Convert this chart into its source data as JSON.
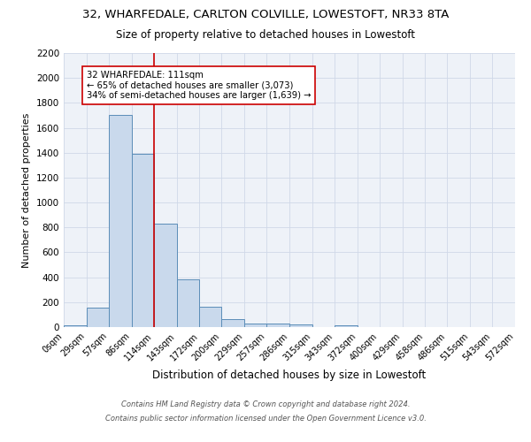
{
  "title_line1": "32, WHARFEDALE, CARLTON COLVILLE, LOWESTOFT, NR33 8TA",
  "title_line2": "Size of property relative to detached houses in Lowestoft",
  "xlabel": "Distribution of detached houses by size in Lowestoft",
  "ylabel": "Number of detached properties",
  "bin_labels": [
    "0sqm",
    "29sqm",
    "57sqm",
    "86sqm",
    "114sqm",
    "143sqm",
    "172sqm",
    "200sqm",
    "229sqm",
    "257sqm",
    "286sqm",
    "315sqm",
    "343sqm",
    "372sqm",
    "400sqm",
    "429sqm",
    "458sqm",
    "486sqm",
    "515sqm",
    "543sqm",
    "572sqm"
  ],
  "bin_edges": [
    0,
    29,
    57,
    86,
    114,
    143,
    172,
    200,
    229,
    257,
    286,
    315,
    343,
    372,
    400,
    429,
    458,
    486,
    515,
    543,
    572
  ],
  "bar_heights": [
    15,
    155,
    1700,
    1390,
    830,
    380,
    160,
    65,
    30,
    25,
    20,
    0,
    15,
    0,
    0,
    0,
    0,
    0,
    0,
    0
  ],
  "bar_color": "#c9d9ec",
  "bar_edge_color": "#5b8db8",
  "grid_color": "#d0d8e8",
  "vline_x": 114,
  "vline_color": "#cc0000",
  "annotation_text": "32 WHARFEDALE: 111sqm\n← 65% of detached houses are smaller (3,073)\n34% of semi-detached houses are larger (1,639) →",
  "annotation_box_color": "white",
  "annotation_box_edge": "#cc0000",
  "ylim": [
    0,
    2200
  ],
  "yticks": [
    0,
    200,
    400,
    600,
    800,
    1000,
    1200,
    1400,
    1600,
    1800,
    2000,
    2200
  ],
  "footer_line1": "Contains HM Land Registry data © Crown copyright and database right 2024.",
  "footer_line2": "Contains public sector information licensed under the Open Government Licence v3.0.",
  "bg_color": "#eef2f8"
}
